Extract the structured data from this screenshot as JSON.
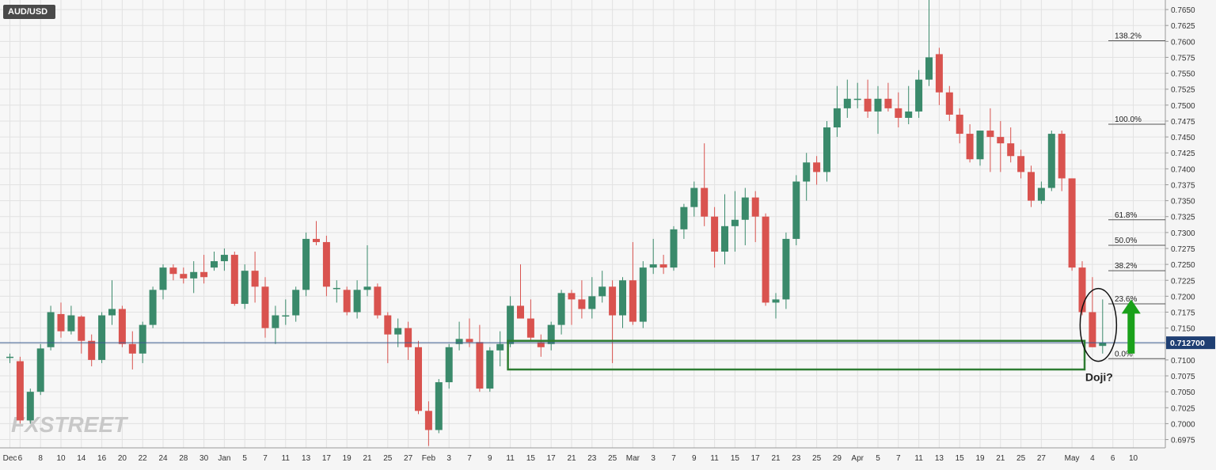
{
  "chart_data": {
    "type": "candlestick",
    "symbol": "AUD/USD",
    "watermark": "FXSTREET",
    "current_price": 0.7127,
    "current_price_label": "0.712700",
    "ylim": [
      0.6962,
      0.7665
    ],
    "y_ticks": [
      "0.6975",
      "0.7000",
      "0.7025",
      "0.7050",
      "0.7075",
      "0.7100",
      "0.7125",
      "0.7150",
      "0.7175",
      "0.7200",
      "0.7225",
      "0.7250",
      "0.7275",
      "0.7300",
      "0.7325",
      "0.7350",
      "0.7375",
      "0.7400",
      "0.7425",
      "0.7450",
      "0.7475",
      "0.7500",
      "0.7525",
      "0.7550",
      "0.7575",
      "0.7600",
      "0.7625",
      "0.7650"
    ],
    "x_ticks": [
      {
        "label": "Dec",
        "idx": 0
      },
      {
        "label": "6",
        "idx": 1
      },
      {
        "label": "8",
        "idx": 3
      },
      {
        "label": "10",
        "idx": 5
      },
      {
        "label": "14",
        "idx": 7
      },
      {
        "label": "16",
        "idx": 9
      },
      {
        "label": "20",
        "idx": 11
      },
      {
        "label": "22",
        "idx": 13
      },
      {
        "label": "24",
        "idx": 15
      },
      {
        "label": "28",
        "idx": 17
      },
      {
        "label": "30",
        "idx": 19
      },
      {
        "label": "Jan",
        "idx": 21
      },
      {
        "label": "5",
        "idx": 23
      },
      {
        "label": "7",
        "idx": 25
      },
      {
        "label": "11",
        "idx": 27
      },
      {
        "label": "13",
        "idx": 29
      },
      {
        "label": "17",
        "idx": 31
      },
      {
        "label": "19",
        "idx": 33
      },
      {
        "label": "21",
        "idx": 35
      },
      {
        "label": "25",
        "idx": 37
      },
      {
        "label": "27",
        "idx": 39
      },
      {
        "label": "Feb",
        "idx": 41
      },
      {
        "label": "3",
        "idx": 43
      },
      {
        "label": "7",
        "idx": 45
      },
      {
        "label": "9",
        "idx": 47
      },
      {
        "label": "11",
        "idx": 49
      },
      {
        "label": "15",
        "idx": 51
      },
      {
        "label": "17",
        "idx": 53
      },
      {
        "label": "21",
        "idx": 55
      },
      {
        "label": "23",
        "idx": 57
      },
      {
        "label": "25",
        "idx": 59
      },
      {
        "label": "Mar",
        "idx": 61
      },
      {
        "label": "3",
        "idx": 63
      },
      {
        "label": "7",
        "idx": 65
      },
      {
        "label": "9",
        "idx": 67
      },
      {
        "label": "11",
        "idx": 69
      },
      {
        "label": "15",
        "idx": 71
      },
      {
        "label": "17",
        "idx": 73
      },
      {
        "label": "21",
        "idx": 75
      },
      {
        "label": "23",
        "idx": 77
      },
      {
        "label": "25",
        "idx": 79
      },
      {
        "label": "29",
        "idx": 81
      },
      {
        "label": "Apr",
        "idx": 83
      },
      {
        "label": "5",
        "idx": 85
      },
      {
        "label": "7",
        "idx": 87
      },
      {
        "label": "11",
        "idx": 89
      },
      {
        "label": "13",
        "idx": 91
      },
      {
        "label": "15",
        "idx": 93
      },
      {
        "label": "19",
        "idx": 95
      },
      {
        "label": "21",
        "idx": 97
      },
      {
        "label": "25",
        "idx": 99
      },
      {
        "label": "27",
        "idx": 101
      },
      {
        "label": "May",
        "idx": 104
      },
      {
        "label": "4",
        "idx": 106
      },
      {
        "label": "6",
        "idx": 108
      },
      {
        "label": "10",
        "idx": 110
      }
    ],
    "candles": [
      [
        0.7105,
        0.711,
        0.7095,
        0.7105
      ],
      [
        0.7098,
        0.7105,
        0.7,
        0.7005
      ],
      [
        0.7005,
        0.7055,
        0.7,
        0.705
      ],
      [
        0.705,
        0.7125,
        0.7045,
        0.7118
      ],
      [
        0.712,
        0.7185,
        0.7115,
        0.7175
      ],
      [
        0.7172,
        0.719,
        0.7135,
        0.7145
      ],
      [
        0.7145,
        0.7185,
        0.714,
        0.717
      ],
      [
        0.7168,
        0.717,
        0.711,
        0.713
      ],
      [
        0.713,
        0.714,
        0.709,
        0.71
      ],
      [
        0.71,
        0.7175,
        0.7095,
        0.717
      ],
      [
        0.717,
        0.7225,
        0.7155,
        0.718
      ],
      [
        0.718,
        0.7185,
        0.712,
        0.7125
      ],
      [
        0.7125,
        0.7145,
        0.7085,
        0.711
      ],
      [
        0.711,
        0.716,
        0.7095,
        0.7155
      ],
      [
        0.7155,
        0.7215,
        0.715,
        0.721
      ],
      [
        0.721,
        0.725,
        0.7195,
        0.7245
      ],
      [
        0.7245,
        0.725,
        0.7225,
        0.7235
      ],
      [
        0.7235,
        0.7245,
        0.722,
        0.7228
      ],
      [
        0.7228,
        0.7255,
        0.7205,
        0.7238
      ],
      [
        0.7238,
        0.7265,
        0.722,
        0.723
      ],
      [
        0.7245,
        0.727,
        0.724,
        0.7255
      ],
      [
        0.7255,
        0.7275,
        0.724,
        0.7265
      ],
      [
        0.7265,
        0.727,
        0.7185,
        0.7188
      ],
      [
        0.7188,
        0.725,
        0.718,
        0.724
      ],
      [
        0.724,
        0.727,
        0.719,
        0.7215
      ],
      [
        0.7215,
        0.723,
        0.7135,
        0.715
      ],
      [
        0.715,
        0.7185,
        0.7125,
        0.717
      ],
      [
        0.717,
        0.7195,
        0.7155,
        0.717
      ],
      [
        0.717,
        0.7215,
        0.716,
        0.721
      ],
      [
        0.721,
        0.73,
        0.72,
        0.729
      ],
      [
        0.729,
        0.7318,
        0.728,
        0.7285
      ],
      [
        0.7285,
        0.7295,
        0.72,
        0.7215
      ],
      [
        0.7213,
        0.7225,
        0.719,
        0.7213
      ],
      [
        0.721,
        0.7215,
        0.717,
        0.7175
      ],
      [
        0.7175,
        0.7225,
        0.7165,
        0.721
      ],
      [
        0.721,
        0.728,
        0.72,
        0.7215
      ],
      [
        0.7215,
        0.722,
        0.7165,
        0.717
      ],
      [
        0.717,
        0.7175,
        0.7095,
        0.714
      ],
      [
        0.714,
        0.7165,
        0.712,
        0.715
      ],
      [
        0.715,
        0.716,
        0.71,
        0.712
      ],
      [
        0.712,
        0.713,
        0.7015,
        0.702
      ],
      [
        0.702,
        0.7035,
        0.6965,
        0.699
      ],
      [
        0.699,
        0.707,
        0.6985,
        0.7065
      ],
      [
        0.7065,
        0.7125,
        0.7055,
        0.712
      ],
      [
        0.7125,
        0.716,
        0.7115,
        0.7133
      ],
      [
        0.7133,
        0.7165,
        0.712,
        0.7128
      ],
      [
        0.7128,
        0.7155,
        0.705,
        0.7055
      ],
      [
        0.7055,
        0.712,
        0.705,
        0.7115
      ],
      [
        0.7115,
        0.7145,
        0.709,
        0.7125
      ],
      [
        0.7125,
        0.72,
        0.712,
        0.7185
      ],
      [
        0.7185,
        0.725,
        0.7165,
        0.7165
      ],
      [
        0.7165,
        0.7195,
        0.713,
        0.7135
      ],
      [
        0.7128,
        0.714,
        0.7105,
        0.712
      ],
      [
        0.7125,
        0.716,
        0.7115,
        0.7155
      ],
      [
        0.7155,
        0.721,
        0.714,
        0.7205
      ],
      [
        0.7205,
        0.721,
        0.7155,
        0.7195
      ],
      [
        0.7195,
        0.7225,
        0.7165,
        0.718
      ],
      [
        0.718,
        0.723,
        0.7165,
        0.72
      ],
      [
        0.72,
        0.724,
        0.719,
        0.7215
      ],
      [
        0.7215,
        0.7225,
        0.7095,
        0.717
      ],
      [
        0.717,
        0.723,
        0.715,
        0.7225
      ],
      [
        0.7225,
        0.7285,
        0.7155,
        0.716
      ],
      [
        0.716,
        0.7255,
        0.715,
        0.7245
      ],
      [
        0.7245,
        0.729,
        0.7235,
        0.725
      ],
      [
        0.725,
        0.7265,
        0.7235,
        0.7245
      ],
      [
        0.7245,
        0.731,
        0.724,
        0.7305
      ],
      [
        0.7305,
        0.7345,
        0.729,
        0.734
      ],
      [
        0.734,
        0.738,
        0.7325,
        0.737
      ],
      [
        0.737,
        0.744,
        0.731,
        0.7325
      ],
      [
        0.7325,
        0.734,
        0.7245,
        0.727
      ],
      [
        0.727,
        0.736,
        0.725,
        0.731
      ],
      [
        0.731,
        0.7365,
        0.727,
        0.732
      ],
      [
        0.732,
        0.737,
        0.728,
        0.7355
      ],
      [
        0.7355,
        0.7365,
        0.7285,
        0.7325
      ],
      [
        0.7325,
        0.733,
        0.7185,
        0.719
      ],
      [
        0.719,
        0.7205,
        0.7165,
        0.7195
      ],
      [
        0.7195,
        0.73,
        0.718,
        0.729
      ],
      [
        0.729,
        0.739,
        0.728,
        0.738
      ],
      [
        0.738,
        0.7425,
        0.735,
        0.741
      ],
      [
        0.741,
        0.742,
        0.7375,
        0.7395
      ],
      [
        0.7395,
        0.7475,
        0.738,
        0.7465
      ],
      [
        0.7465,
        0.753,
        0.745,
        0.7495
      ],
      [
        0.7495,
        0.754,
        0.748,
        0.751
      ],
      [
        0.751,
        0.7535,
        0.7495,
        0.751
      ],
      [
        0.751,
        0.754,
        0.748,
        0.749
      ],
      [
        0.749,
        0.753,
        0.7455,
        0.751
      ],
      [
        0.751,
        0.7535,
        0.749,
        0.7495
      ],
      [
        0.7495,
        0.752,
        0.7465,
        0.748
      ],
      [
        0.748,
        0.753,
        0.747,
        0.749
      ],
      [
        0.749,
        0.7555,
        0.748,
        0.754
      ],
      [
        0.754,
        0.7665,
        0.753,
        0.7575
      ],
      [
        0.758,
        0.759,
        0.75,
        0.752
      ],
      [
        0.752,
        0.753,
        0.7475,
        0.7485
      ],
      [
        0.7485,
        0.7495,
        0.744,
        0.7455
      ],
      [
        0.7455,
        0.747,
        0.741,
        0.7415
      ],
      [
        0.7415,
        0.746,
        0.7405,
        0.746
      ],
      [
        0.746,
        0.7495,
        0.7395,
        0.745
      ],
      [
        0.745,
        0.7475,
        0.7395,
        0.744
      ],
      [
        0.744,
        0.7465,
        0.741,
        0.742
      ],
      [
        0.742,
        0.743,
        0.7385,
        0.7395
      ],
      [
        0.7395,
        0.7405,
        0.734,
        0.735
      ],
      [
        0.735,
        0.738,
        0.7345,
        0.737
      ],
      [
        0.737,
        0.746,
        0.7365,
        0.7455
      ],
      [
        0.7455,
        0.746,
        0.7365,
        0.7385
      ],
      [
        0.7385,
        0.7385,
        0.724,
        0.7245
      ],
      [
        0.7245,
        0.7255,
        0.717,
        0.7175
      ],
      [
        0.7175,
        0.723,
        0.712,
        0.712
      ],
      [
        0.7122,
        0.7195,
        0.711,
        0.7127
      ]
    ],
    "fib_levels": [
      {
        "label": "138.2%",
        "value": 0.7601
      },
      {
        "label": "100.0%",
        "value": 0.747
      },
      {
        "label": "61.8%",
        "value": 0.732
      },
      {
        "label": "50.0%",
        "value": 0.728
      },
      {
        "label": "38.2%",
        "value": 0.724
      },
      {
        "label": "23.6%",
        "value": 0.7188
      },
      {
        "label": "0.0%",
        "value": 0.7102
      }
    ],
    "support_zone": {
      "from_idx": 49,
      "to_idx": 105,
      "top": 0.713,
      "bottom": 0.7085
    },
    "annotation": "Doji?",
    "colors": {
      "bull": "#3a8a6b",
      "bear": "#d9534f",
      "grid": "#e2e2e2",
      "zone": "#2e7d32",
      "arrow": "#1aa11a",
      "price_line": "#3b5b8f",
      "price_badge": "#1f3f73",
      "axis_text": "#333333"
    }
  }
}
